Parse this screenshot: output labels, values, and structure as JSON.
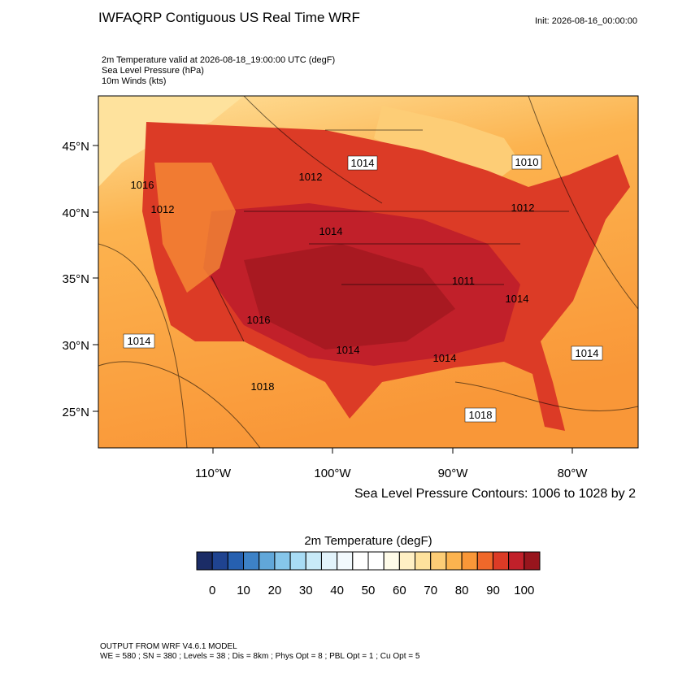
{
  "header": {
    "title": "IWFAQRP Contiguous US Real Time WRF",
    "init": "Init: 2026-08-16_00:00:00",
    "subtitles": [
      "2m Temperature valid at 2026-08-18_19:00:00 UTC   (degF)",
      "Sea Level Pressure   (hPa)",
      "10m Winds   (kts)"
    ]
  },
  "map": {
    "lat_labels": [
      "45°N",
      "40°N",
      "35°N",
      "30°N",
      "25°N"
    ],
    "lon_labels": [
      "110°W",
      "100°W",
      "90°W",
      "80°W"
    ],
    "pressure_labels": [
      "1014",
      "1012",
      "1016",
      "1014",
      "1012",
      "1010",
      "1012",
      "1014",
      "1014",
      "1014",
      "1011",
      "1014",
      "1014",
      "1018",
      "1016",
      "1018"
    ],
    "contour_caption": "Sea Level Pressure Contours: 1006 to 1028 by 2"
  },
  "colorbar": {
    "title": "2m Temperature  (degF)",
    "labels": [
      "0",
      "10",
      "20",
      "30",
      "40",
      "50",
      "60",
      "70",
      "80",
      "90",
      "100"
    ],
    "colors": [
      "#1b2c66",
      "#1f4390",
      "#2660b0",
      "#3d82c7",
      "#61a7d9",
      "#86c6ea",
      "#a8dcf5",
      "#c8eaf8",
      "#e2f3fb",
      "#f2f9fd",
      "#ffffff",
      "#ffffff",
      "#fffbe8",
      "#fff0c4",
      "#fee29d",
      "#fdcd76",
      "#fcb34f",
      "#f99738",
      "#f0682a",
      "#dc3b26",
      "#c1202a",
      "#98151d"
    ]
  },
  "footer": [
    "OUTPUT FROM WRF V4.6.1 MODEL",
    "WE = 580 ; SN = 380 ; Levels = 38 ; Dis = 8km ; Phys Opt = 8 ; PBL Opt = 1 ; Cu Opt = 5"
  ]
}
